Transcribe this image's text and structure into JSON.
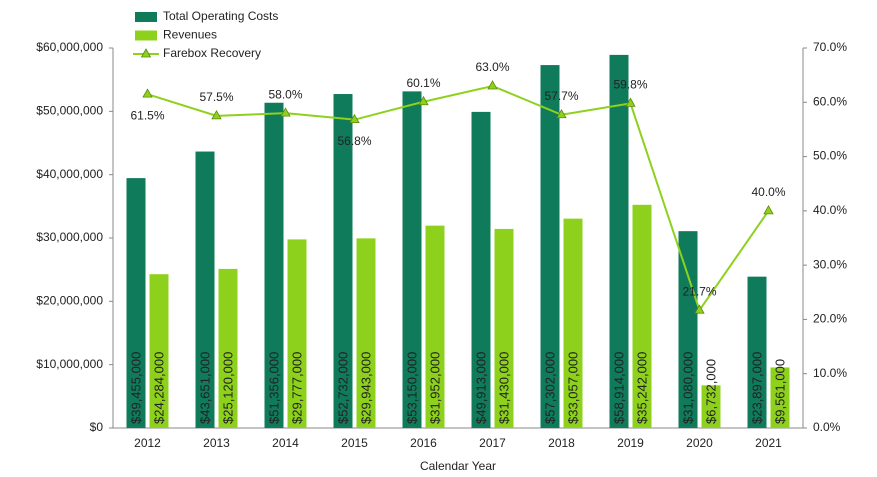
{
  "chart_data": {
    "type": "bar",
    "x_label": "Calendar Year",
    "categories": [
      "2012",
      "2013",
      "2014",
      "2015",
      "2016",
      "2017",
      "2018",
      "2019",
      "2020",
      "2021"
    ],
    "series": [
      {
        "name": "Total Operating Costs",
        "color": "#0f7b5b",
        "type": "bar",
        "values": [
          39455000,
          43651000,
          51356000,
          52732000,
          53150000,
          49913000,
          57302000,
          58914000,
          31080000,
          23897000
        ],
        "value_labels": [
          "$39,455,000",
          "$43,651,000",
          "$51,356,000",
          "$52,732,000",
          "$53,150,000",
          "$49,913,000",
          "$57,302,000",
          "$58,914,000",
          "$31,080,000",
          "$23,897,000"
        ]
      },
      {
        "name": "Revenues",
        "color": "#8ed11c",
        "type": "bar",
        "values": [
          24284000,
          25120000,
          29777000,
          29943000,
          31952000,
          31430000,
          33057000,
          35242000,
          6732000,
          9561000
        ],
        "value_labels": [
          "$24,284,000",
          "$25,120,000",
          "$29,777,000",
          "$29,943,000",
          "$31,952,000",
          "$31,430,000",
          "$33,057,000",
          "$35,242,000",
          "$6,732,000",
          "$9,561,000"
        ]
      },
      {
        "name": "Farebox Recovery",
        "color": "#8ed11c",
        "type": "line",
        "axis": "y2",
        "values": [
          61.5,
          57.5,
          58.0,
          56.8,
          60.1,
          63.0,
          57.7,
          59.8,
          21.7,
          40.0
        ],
        "value_labels": [
          "61.5%",
          "57.5%",
          "58.0%",
          "56.8%",
          "60.1%",
          "63.0%",
          "57.7%",
          "59.8%",
          "21.7%",
          "40.0%"
        ]
      }
    ],
    "ylim": [
      0,
      60000000
    ],
    "yticks": [
      {
        "value": 0,
        "label": "$0"
      },
      {
        "value": 10000000,
        "label": "$10,000,000"
      },
      {
        "value": 20000000,
        "label": "$20,000,000"
      },
      {
        "value": 30000000,
        "label": "$30,000,000"
      },
      {
        "value": 40000000,
        "label": "$40,000,000"
      },
      {
        "value": 50000000,
        "label": "$50,000,000"
      },
      {
        "value": 60000000,
        "label": "$60,000,000"
      }
    ],
    "y2lim": [
      0,
      70
    ],
    "y2ticks": [
      {
        "value": 0,
        "label": "0.0%"
      },
      {
        "value": 10,
        "label": "10.0%"
      },
      {
        "value": 20,
        "label": "20.0%"
      },
      {
        "value": 30,
        "label": "30.0%"
      },
      {
        "value": 40,
        "label": "40.0%"
      },
      {
        "value": 50,
        "label": "50.0%"
      },
      {
        "value": 60,
        "label": "60.0%"
      },
      {
        "value": 70,
        "label": "70.0%"
      }
    ]
  }
}
